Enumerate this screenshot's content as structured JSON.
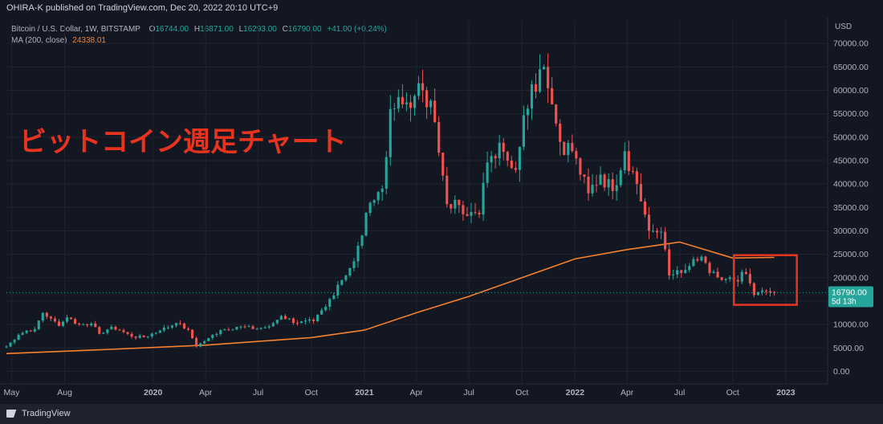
{
  "header": {
    "published": "OHIRA-K published on TradingView.com, Dec 20, 2022 20:10 UTC+9"
  },
  "legend": {
    "symbol": "Bitcoin / U.S. Dollar, 1W, BITSTAMP",
    "o_label": "O",
    "o": "16744.00",
    "h_label": "H",
    "h": "16871.00",
    "l_label": "L",
    "l": "16293.00",
    "c_label": "C",
    "c": "16790.00",
    "change": "+41.00 (+0.24%)",
    "ma_label": "MA (200, close)",
    "ma_value": "24338.01"
  },
  "currency": "USD",
  "last_price": {
    "value": "16790.00",
    "countdown": "5d 13h"
  },
  "annotation": "ビットコイン週足チャート",
  "footer": {
    "brand": "TradingView"
  },
  "colors": {
    "up": "#26a69a",
    "down": "#ef5350",
    "ma": "#f7812d",
    "annotation": "#e8341f",
    "background": "#131722"
  },
  "chart_data": {
    "type": "candlestick",
    "title": "",
    "xlabel": "",
    "ylabel": "",
    "ylim": [
      -2500,
      75000
    ],
    "xlim": [
      "2019-04-22",
      "2023-03-13"
    ],
    "grid": true,
    "yticks": [
      0,
      5000,
      10000,
      15000,
      20000,
      25000,
      30000,
      35000,
      40000,
      45000,
      50000,
      55000,
      60000,
      65000,
      70000
    ],
    "ytick_labels": [
      "0.00",
      "5000.00",
      "10000.00",
      "15000.00",
      "20000.00",
      "25000.00",
      "30000.00",
      "35000.00",
      "40000.00",
      "45000.00",
      "50000.00",
      "55000.00",
      "60000.00",
      "65000.00",
      "70000.00"
    ],
    "xticks": [
      {
        "date": "2019-05-01",
        "label": "May",
        "bold": false
      },
      {
        "date": "2019-08-01",
        "label": "Aug",
        "bold": false
      },
      {
        "date": "2020-01-01",
        "label": "2020",
        "bold": true
      },
      {
        "date": "2020-04-01",
        "label": "Apr",
        "bold": false
      },
      {
        "date": "2020-07-01",
        "label": "Jul",
        "bold": false
      },
      {
        "date": "2020-10-01",
        "label": "Oct",
        "bold": false
      },
      {
        "date": "2021-01-01",
        "label": "2021",
        "bold": true
      },
      {
        "date": "2021-04-01",
        "label": "Apr",
        "bold": false
      },
      {
        "date": "2021-07-01",
        "label": "Jul",
        "bold": false
      },
      {
        "date": "2021-10-01",
        "label": "Oct",
        "bold": false
      },
      {
        "date": "2022-01-01",
        "label": "2022",
        "bold": true
      },
      {
        "date": "2022-04-01",
        "label": "Apr",
        "bold": false
      },
      {
        "date": "2022-07-01",
        "label": "Jul",
        "bold": false
      },
      {
        "date": "2022-10-01",
        "label": "Oct",
        "bold": false
      },
      {
        "date": "2023-01-01",
        "label": "2023",
        "bold": true
      }
    ],
    "close_anchors": [
      [
        "2019-04-22",
        5300
      ],
      [
        "2019-05-13",
        7800
      ],
      [
        "2019-05-27",
        8700
      ],
      [
        "2019-06-10",
        9000
      ],
      [
        "2019-06-24",
        12500
      ],
      [
        "2019-07-08",
        11300
      ],
      [
        "2019-07-22",
        9700
      ],
      [
        "2019-08-05",
        11500
      ],
      [
        "2019-08-26",
        10000
      ],
      [
        "2019-09-16",
        10200
      ],
      [
        "2019-09-30",
        8000
      ],
      [
        "2019-10-21",
        9500
      ],
      [
        "2019-11-04",
        8800
      ],
      [
        "2019-11-25",
        7400
      ],
      [
        "2019-12-16",
        7300
      ],
      [
        "2020-01-13",
        8700
      ],
      [
        "2020-02-10",
        10300
      ],
      [
        "2020-03-02",
        8900
      ],
      [
        "2020-03-16",
        5300
      ],
      [
        "2020-04-06",
        7100
      ],
      [
        "2020-04-27",
        8800
      ],
      [
        "2020-05-25",
        9500
      ],
      [
        "2020-06-29",
        9100
      ],
      [
        "2020-07-20",
        9600
      ],
      [
        "2020-08-10",
        11800
      ],
      [
        "2020-09-07",
        10300
      ],
      [
        "2020-10-05",
        10700
      ],
      [
        "2020-10-26",
        13800
      ],
      [
        "2020-11-16",
        18500
      ],
      [
        "2020-12-14",
        23500
      ],
      [
        "2020-12-28",
        29000
      ],
      [
        "2021-01-11",
        36000
      ],
      [
        "2021-02-01",
        39000
      ],
      [
        "2021-02-15",
        56000
      ],
      [
        "2021-03-08",
        57000
      ],
      [
        "2021-03-29",
        58800
      ],
      [
        "2021-04-12",
        60000
      ],
      [
        "2021-04-26",
        57800
      ],
      [
        "2021-05-10",
        46700
      ],
      [
        "2021-05-24",
        35700
      ],
      [
        "2021-06-14",
        35500
      ],
      [
        "2021-07-05",
        34000
      ],
      [
        "2021-07-19",
        33500
      ],
      [
        "2021-08-02",
        44600
      ],
      [
        "2021-08-23",
        48800
      ],
      [
        "2021-09-06",
        45000
      ],
      [
        "2021-09-20",
        43000
      ],
      [
        "2021-10-04",
        54700
      ],
      [
        "2021-10-18",
        61300
      ],
      [
        "2021-11-08",
        65000
      ],
      [
        "2021-11-22",
        57000
      ],
      [
        "2021-12-06",
        49000
      ],
      [
        "2021-12-27",
        47000
      ],
      [
        "2022-01-10",
        42000
      ],
      [
        "2022-01-24",
        38000
      ],
      [
        "2022-02-14",
        42000
      ],
      [
        "2022-03-07",
        38500
      ],
      [
        "2022-03-28",
        47000
      ],
      [
        "2022-04-18",
        40000
      ],
      [
        "2022-05-09",
        30000
      ],
      [
        "2022-05-30",
        29800
      ],
      [
        "2022-06-13",
        20500
      ],
      [
        "2022-07-04",
        21000
      ],
      [
        "2022-07-18",
        22500
      ],
      [
        "2022-08-08",
        24500
      ],
      [
        "2022-08-22",
        21000
      ],
      [
        "2022-09-12",
        19500
      ],
      [
        "2022-10-03",
        19500
      ],
      [
        "2022-10-24",
        20800
      ],
      [
        "2022-11-07",
        16300
      ],
      [
        "2022-11-28",
        17100
      ],
      [
        "2022-12-12",
        16790
      ]
    ],
    "ma_series": {
      "name": "MA (200, close)",
      "points": [
        [
          "2019-04-22",
          3800
        ],
        [
          "2019-10-01",
          4600
        ],
        [
          "2020-04-01",
          5600
        ],
        [
          "2020-10-01",
          7200
        ],
        [
          "2021-01-01",
          8800
        ],
        [
          "2021-04-01",
          12500
        ],
        [
          "2021-07-01",
          16000
        ],
        [
          "2021-10-01",
          20000
        ],
        [
          "2022-01-01",
          24000
        ],
        [
          "2022-04-01",
          26000
        ],
        [
          "2022-07-01",
          27600
        ],
        [
          "2022-10-01",
          24200
        ],
        [
          "2022-12-12",
          24338
        ]
      ]
    },
    "last_price": 16790
  }
}
